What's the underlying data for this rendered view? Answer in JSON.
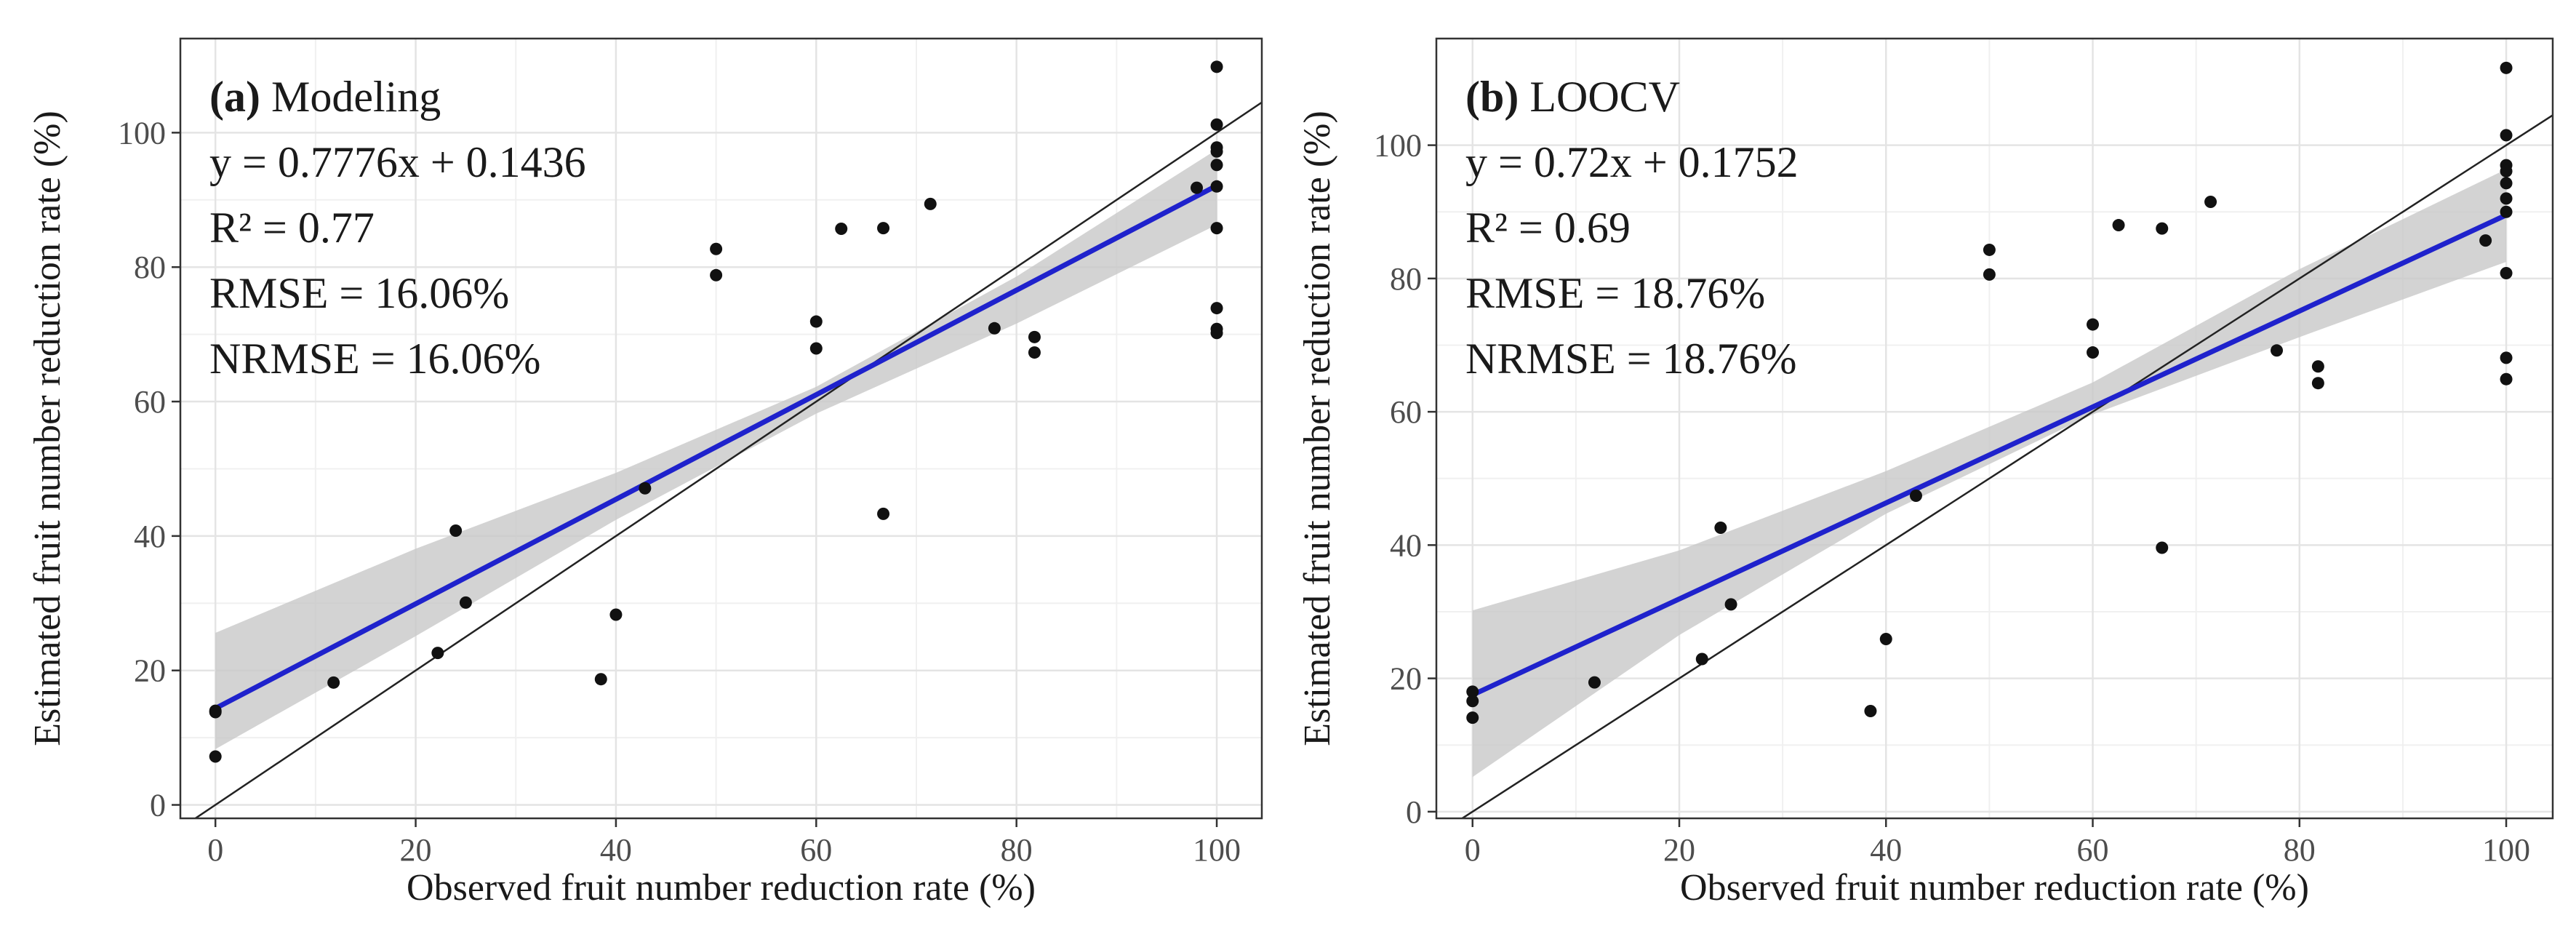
{
  "figure_title": "",
  "chart_data": [
    {
      "type": "scatter",
      "panel_label": "(a)",
      "panel_name": "Modeling",
      "annotations": [
        "y = 0.7776x + 0.1436",
        "R² = 0.77",
        "RMSE = 16.06%",
        "NRMSE = 16.06%"
      ],
      "xlabel": "Observed fruit number reduction rate (%)",
      "ylabel": "Estimated fruit number reduction rate (%)",
      "xlim": [
        -3.5,
        104.5
      ],
      "ylim": [
        -2,
        114
      ],
      "xticks": [
        0,
        20,
        40,
        60,
        80,
        100
      ],
      "yticks": [
        0,
        20,
        40,
        60,
        80,
        100
      ],
      "grid": true,
      "legend": "none",
      "fit": {
        "slope": 0.7776,
        "intercept": 14.36
      },
      "ci_band": [
        [
          0,
          8.3,
          25.6
        ],
        [
          20,
          25.1,
          38.1
        ],
        [
          40,
          42.4,
          49.4
        ],
        [
          60,
          58.2,
          62.2
        ],
        [
          80,
          71.6,
          78.6
        ],
        [
          100,
          86.3,
          97.5
        ]
      ],
      "x": [
        0,
        0,
        0,
        11.8,
        22.2,
        24,
        25,
        38.5,
        40,
        42.9,
        50,
        50,
        60,
        60,
        62.5,
        66.7,
        66.7,
        71.4,
        77.8,
        81.8,
        81.8,
        98,
        100,
        100,
        100,
        100,
        100,
        100,
        100,
        100,
        100,
        100
      ],
      "y": [
        14,
        13.8,
        7.2,
        18.2,
        22.6,
        40.8,
        30.1,
        18.7,
        28.3,
        47.1,
        82.7,
        78.8,
        71.9,
        67.9,
        85.7,
        85.8,
        43.3,
        89.4,
        70.9,
        69.6,
        67.3,
        91.8,
        109.8,
        101.2,
        97.8,
        97.2,
        95.2,
        92,
        85.8,
        73.9,
        70.8,
        70.2
      ]
    },
    {
      "type": "scatter",
      "panel_label": "(b)",
      "panel_name": "LOOCV",
      "annotations": [
        "y = 0.72x + 0.1752",
        "R² = 0.69",
        "RMSE = 18.76%",
        "NRMSE = 18.76%"
      ],
      "xlabel": "Observed fruit number reduction rate (%)",
      "ylabel": "Estimated fruit number reduction rate (%)",
      "xlim": [
        -3.5,
        104.5
      ],
      "ylim": [
        -1,
        116
      ],
      "xticks": [
        0,
        20,
        40,
        60,
        80,
        100
      ],
      "yticks": [
        0,
        20,
        40,
        60,
        80,
        100
      ],
      "grid": true,
      "legend": "none",
      "fit": {
        "slope": 0.72,
        "intercept": 17.52
      },
      "ci_band": [
        [
          0,
          5.2,
          30.2
        ],
        [
          20,
          26.5,
          39.2
        ],
        [
          40,
          44.7,
          51.1
        ],
        [
          60,
          59.6,
          64.4
        ],
        [
          80,
          71.2,
          81.4
        ],
        [
          100,
          82.5,
          96.4
        ]
      ],
      "x": [
        0,
        0,
        0,
        11.8,
        22.2,
        24,
        25,
        38.5,
        40,
        42.9,
        50,
        50,
        60,
        60,
        62.5,
        66.7,
        66.7,
        71.4,
        77.8,
        81.8,
        81.8,
        98,
        100,
        100,
        100,
        100,
        100,
        100,
        100,
        100,
        100,
        100
      ],
      "y": [
        18,
        16.6,
        14.1,
        19.4,
        22.9,
        42.6,
        31.1,
        15.1,
        25.9,
        47.4,
        84.3,
        80.6,
        73.1,
        68.9,
        88,
        87.5,
        39.6,
        91.5,
        69.2,
        66.8,
        64.3,
        85.7,
        111.6,
        101.5,
        97,
        96.1,
        94.3,
        92,
        90,
        80.8,
        68.1,
        64.9
      ]
    }
  ]
}
